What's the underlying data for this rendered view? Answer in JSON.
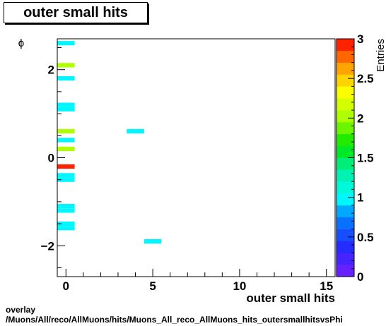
{
  "title": "outer small hits",
  "footer": {
    "line1": "overlay",
    "line2": "/Muons/All/reco/AllMuons/hits/Muons_All_reco_AllMuons_hits_outersmallhitsvsPhi"
  },
  "chart_data": {
    "type": "heatmap",
    "xlabel": "outer small hits",
    "ylabel": "ϕ",
    "zlabel": "Entries",
    "xlim": [
      -0.5,
      15.5
    ],
    "ylim": [
      -2.7,
      2.7
    ],
    "zlim": [
      0,
      3
    ],
    "x_ticks": [
      0,
      5,
      10,
      15
    ],
    "y_ticks": [
      -2,
      0,
      2
    ],
    "z_ticks": [
      "0",
      "0.5",
      "1",
      "1.5",
      "2",
      "2.5",
      "3"
    ],
    "bin_height": 0.1,
    "cells": [
      {
        "x": 0,
        "y": 2.6,
        "value": 1
      },
      {
        "x": 0,
        "y": 2.1,
        "value": 2
      },
      {
        "x": 0,
        "y": 1.8,
        "value": 1
      },
      {
        "x": 0,
        "y": 1.2,
        "value": 1
      },
      {
        "x": 0,
        "y": 1.1,
        "value": 1
      },
      {
        "x": 0,
        "y": 0.6,
        "value": 2
      },
      {
        "x": 4,
        "y": 0.6,
        "value": 1
      },
      {
        "x": 0,
        "y": 0.4,
        "value": 1
      },
      {
        "x": 0,
        "y": 0.2,
        "value": 2
      },
      {
        "x": 0,
        "y": -0.2,
        "value": 3
      },
      {
        "x": 0,
        "y": -0.4,
        "value": 1
      },
      {
        "x": 0,
        "y": -0.5,
        "value": 1
      },
      {
        "x": 0,
        "y": -1.1,
        "value": 1
      },
      {
        "x": 0,
        "y": -1.2,
        "value": 1
      },
      {
        "x": 0,
        "y": -1.5,
        "value": 1
      },
      {
        "x": 0,
        "y": -1.6,
        "value": 1
      },
      {
        "x": 5,
        "y": -1.9,
        "value": 1
      }
    ]
  }
}
